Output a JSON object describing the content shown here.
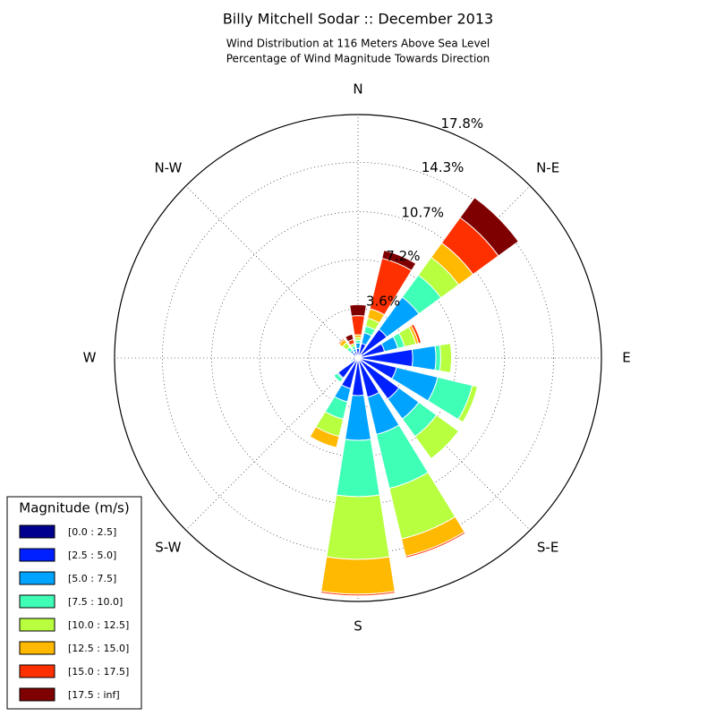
{
  "chart_data": {
    "type": "windrose",
    "title": "Billy Mitchell Sodar :: December 2013",
    "subtitle": [
      "Wind Distribution at 116 Meters Above Sea Level",
      "Percentage of Wind Magnitude Towards Direction"
    ],
    "categories": [
      "N",
      null,
      "N-E",
      null,
      "E",
      null,
      "S-E",
      null,
      "S",
      null,
      "S-W",
      null,
      "W",
      null,
      "N-W",
      null
    ],
    "ylim": [
      0,
      17.8
    ],
    "yticks": [
      {
        "value": 3.6,
        "label": "3.6%"
      },
      {
        "value": 7.2,
        "label": "7.2%"
      },
      {
        "value": 10.7,
        "label": "10.7%"
      },
      {
        "value": 14.3,
        "label": "14.3%"
      },
      {
        "value": 17.8,
        "label": "17.8%"
      }
    ],
    "grid": true,
    "legend": {
      "title": "Magnitude (m/s)",
      "position": "lower left"
    },
    "series": [
      {
        "name": "[0.0 : 2.5]",
        "color": "#00008f",
        "values": [
          0.2,
          0.2,
          0.3,
          0.2,
          0.3,
          0.2,
          0.2,
          0.2,
          0.2,
          0.2,
          0.2,
          0.1,
          0.1,
          0.1,
          0.2,
          0.2
        ]
      },
      {
        "name": "[2.5 : 5.0]",
        "color": "#0020ff",
        "values": [
          0.5,
          0.9,
          2.3,
          1.8,
          3.7,
          2.7,
          3.5,
          2.75,
          2.55,
          2.1,
          1.6,
          0.3,
          0.1,
          0.2,
          0.3,
          0.3
        ]
      },
      {
        "name": "[5.0 : 7.5]",
        "color": "#00a4ff",
        "values": [
          0.4,
          0.8,
          2.9,
          1.0,
          1.7,
          3.1,
          1.8,
          2.8,
          3.27,
          1.0,
          0.1,
          0.1,
          0,
          0.1,
          0.2,
          0.2
        ]
      },
      {
        "name": "[7.5 : 10.0]",
        "color": "#3fffb7",
        "values": [
          0.2,
          0.5,
          2.0,
          0.5,
          0.35,
          2.6,
          1.6,
          4.06,
          4.12,
          1.3,
          0.3,
          0.1,
          0,
          0,
          0.3,
          0.2
        ]
      },
      {
        "name": "[10.0 : 12.5]",
        "color": "#b7ff3f",
        "values": [
          0.2,
          0.6,
          1.6,
          0.85,
          0.8,
          0.4,
          2.0,
          3.8,
          4.58,
          1.3,
          0,
          0,
          0,
          0,
          0.4,
          0.2
        ]
      },
      {
        "name": "[12.5 : 15.0]",
        "color": "#ffb900",
        "values": [
          0.2,
          0.7,
          1.3,
          0.2,
          0,
          0,
          0,
          1.3,
          2.55,
          0.85,
          0,
          0,
          0,
          0,
          0.3,
          0
        ]
      },
      {
        "name": "[15.0 : 17.5]",
        "color": "#ff3000",
        "values": [
          1.4,
          3.8,
          2.3,
          0.2,
          0,
          0,
          0,
          0.13,
          0.13,
          0,
          0,
          0,
          0,
          0,
          0.1,
          0.3
        ]
      },
      {
        "name": "[17.5 : inf]",
        "color": "#7f0000",
        "values": [
          0.8,
          0.6,
          1.8,
          0,
          0,
          0,
          0,
          0,
          0,
          0,
          0,
          0,
          0,
          0,
          0,
          0.4
        ]
      }
    ]
  }
}
